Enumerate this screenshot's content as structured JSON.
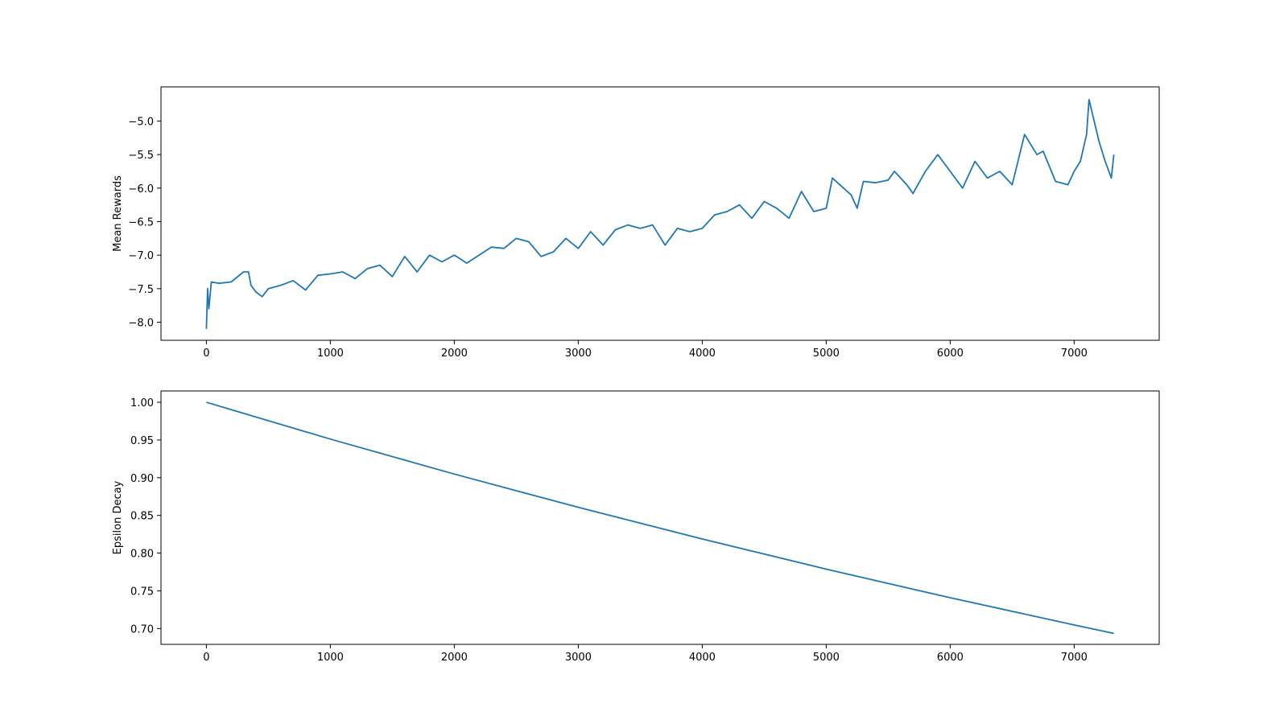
{
  "chart_data": [
    {
      "type": "line",
      "ylabel": "Mean Rewards",
      "color": "#1f77b4",
      "x": [
        0,
        10,
        20,
        40,
        100,
        200,
        300,
        340,
        360,
        400,
        450,
        500,
        600,
        700,
        800,
        900,
        1000,
        1100,
        1200,
        1300,
        1400,
        1500,
        1600,
        1700,
        1800,
        1900,
        2000,
        2100,
        2200,
        2300,
        2400,
        2500,
        2600,
        2700,
        2800,
        2900,
        3000,
        3100,
        3200,
        3300,
        3400,
        3500,
        3600,
        3700,
        3800,
        3900,
        4000,
        4100,
        4200,
        4300,
        4400,
        4500,
        4600,
        4700,
        4800,
        4900,
        5000,
        5050,
        5200,
        5250,
        5300,
        5400,
        5500,
        5550,
        5650,
        5700,
        5800,
        5900,
        6000,
        6100,
        6200,
        6300,
        6400,
        6500,
        6600,
        6700,
        6750,
        6850,
        6950,
        7000,
        7050,
        7100,
        7120,
        7200,
        7250,
        7300,
        7320
      ],
      "values": [
        -8.1,
        -7.5,
        -7.8,
        -7.4,
        -7.42,
        -7.4,
        -7.25,
        -7.25,
        -7.45,
        -7.55,
        -7.62,
        -7.5,
        -7.45,
        -7.38,
        -7.52,
        -7.3,
        -7.28,
        -7.25,
        -7.35,
        -7.2,
        -7.15,
        -7.32,
        -7.02,
        -7.25,
        -7.0,
        -7.1,
        -7.0,
        -7.12,
        -7.0,
        -6.88,
        -6.9,
        -6.75,
        -6.8,
        -7.02,
        -6.95,
        -6.75,
        -6.9,
        -6.65,
        -6.85,
        -6.62,
        -6.55,
        -6.6,
        -6.55,
        -6.85,
        -6.6,
        -6.65,
        -6.6,
        -6.4,
        -6.35,
        -6.25,
        -6.45,
        -6.2,
        -6.3,
        -6.45,
        -6.05,
        -6.35,
        -6.3,
        -5.85,
        -6.1,
        -6.3,
        -5.9,
        -5.92,
        -5.88,
        -5.75,
        -5.95,
        -6.08,
        -5.75,
        -5.5,
        -5.75,
        -6.0,
        -5.6,
        -5.85,
        -5.75,
        -5.95,
        -5.2,
        -5.5,
        -5.45,
        -5.9,
        -5.95,
        -5.75,
        -5.6,
        -5.2,
        -4.68,
        -5.3,
        -5.6,
        -5.85,
        -5.5
      ],
      "xlim": [
        -366,
        7686
      ],
      "xticks": [
        0,
        1000,
        2000,
        3000,
        4000,
        5000,
        6000,
        7000
      ],
      "ylim": [
        -8.27,
        -4.49
      ],
      "yticks": [
        {
          "value": -8.0,
          "label": "−8.0"
        },
        {
          "value": -7.5,
          "label": "−7.5"
        },
        {
          "value": -7.0,
          "label": "−7.0"
        },
        {
          "value": -6.5,
          "label": "−6.5"
        },
        {
          "value": -6.0,
          "label": "−6.0"
        },
        {
          "value": -5.5,
          "label": "−5.5"
        },
        {
          "value": -5.0,
          "label": "−5.0"
        }
      ]
    },
    {
      "type": "line",
      "ylabel": "Epsilon Decay",
      "color": "#1f77b4",
      "x": [
        0,
        1000,
        2000,
        3000,
        4000,
        5000,
        6000,
        7000,
        7320
      ],
      "values": [
        1.0,
        0.9512,
        0.9048,
        0.8607,
        0.8187,
        0.7788,
        0.7408,
        0.7047,
        0.6935
      ],
      "xlim": [
        -366,
        7686
      ],
      "xticks": [
        0,
        1000,
        2000,
        3000,
        4000,
        5000,
        6000,
        7000
      ],
      "ylim": [
        0.679,
        1.015
      ],
      "yticks": [
        {
          "value": 0.7,
          "label": "0.70"
        },
        {
          "value": 0.75,
          "label": "0.75"
        },
        {
          "value": 0.8,
          "label": "0.80"
        },
        {
          "value": 0.85,
          "label": "0.85"
        },
        {
          "value": 0.9,
          "label": "0.90"
        },
        {
          "value": 0.95,
          "label": "0.95"
        },
        {
          "value": 1.0,
          "label": "1.00"
        }
      ]
    }
  ]
}
